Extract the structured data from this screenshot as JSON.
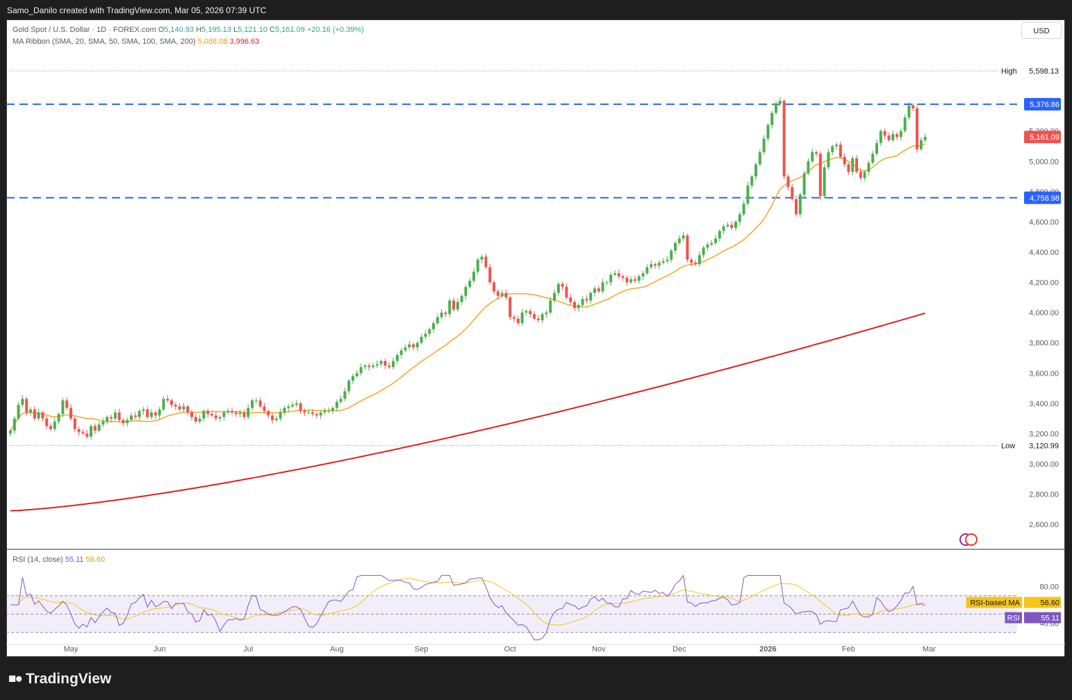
{
  "credit": "Samo_Danilo created with TradingView.com, Mar 05, 2026 07:39 UTC",
  "currency_button": "USD",
  "branding": "TradingView",
  "legend": {
    "symbol": "Gold Spot / U.S. Dollar · 1D · FOREX.com",
    "open_label": "O",
    "open": "5,140.93",
    "high_label": "H",
    "high": "5,195.13",
    "low_label": "L",
    "low": "5,121.10",
    "close_label": "C",
    "close": "5,161.09",
    "change": "+20.16 (+0.39%)",
    "ma_label": "MA Ribbon (SMA, 20, SMA, 50, SMA, 100, SMA, 200)",
    "ma20": "5,088.08",
    "ma200": "3,996.63"
  },
  "rsi_legend": {
    "label": "RSI (14, close)",
    "rsi": "55.11",
    "ma": "56.60"
  },
  "colors": {
    "up": "#4caf50",
    "down": "#ef5350",
    "ma20": "#f5a623",
    "ma200": "#e0201e",
    "level": "#2962ff",
    "rsi": "#7e57c2",
    "rsi_ma": "#f5c518"
  },
  "chart_data": {
    "type": "candlestick",
    "price_axis": {
      "ticks": [
        2600,
        2800,
        3000,
        3200,
        3400,
        3600,
        3800,
        4000,
        4200,
        4400,
        4600,
        4800,
        5000,
        5200
      ],
      "tick_labels": [
        "2,600.00",
        "2,800.00",
        "3,000.00",
        "3,200.00",
        "3,400.00",
        "3,600.00",
        "3,800.00",
        "4,000.00",
        "4,200.00",
        "4,400.00",
        "4,600.00",
        "4,800.00",
        "5,000.00",
        "5,200.00"
      ],
      "range": [
        2440,
        5800
      ]
    },
    "time_axis": {
      "labels": [
        "May",
        "Jun",
        "Jul",
        "Aug",
        "Sep",
        "Oct",
        "Nov",
        "Dec",
        "2026",
        "Feb",
        "Mar"
      ],
      "label_bar_index": [
        15,
        37,
        59,
        81,
        102,
        124,
        146,
        166,
        188,
        208,
        228
      ]
    },
    "high_marker": {
      "label": "High",
      "value": 5598.13,
      "text": "5,598.13"
    },
    "low_marker": {
      "label": "Low",
      "value": 3120.99,
      "text": "3,120.99"
    },
    "levels": [
      {
        "value": 5376.86,
        "text": "5,376.86"
      },
      {
        "value": 4758.98,
        "text": "4,758.98"
      }
    ],
    "last_price": {
      "value": 5161.09,
      "text": "5,161.09"
    },
    "closes": [
      3220,
      3300,
      3390,
      3430,
      3340,
      3360,
      3300,
      3340,
      3300,
      3250,
      3230,
      3280,
      3330,
      3420,
      3370,
      3300,
      3230,
      3210,
      3200,
      3180,
      3250,
      3220,
      3260,
      3280,
      3310,
      3300,
      3340,
      3290,
      3270,
      3290,
      3320,
      3310,
      3350,
      3360,
      3310,
      3340,
      3320,
      3360,
      3430,
      3420,
      3390,
      3380,
      3360,
      3380,
      3340,
      3310,
      3280,
      3300,
      3350,
      3330,
      3320,
      3300,
      3310,
      3340,
      3350,
      3340,
      3330,
      3340,
      3310,
      3370,
      3420,
      3420,
      3380,
      3350,
      3320,
      3290,
      3300,
      3340,
      3370,
      3380,
      3390,
      3400,
      3350,
      3340,
      3340,
      3330,
      3320,
      3340,
      3350,
      3350,
      3370,
      3410,
      3430,
      3480,
      3550,
      3580,
      3600,
      3640,
      3650,
      3640,
      3650,
      3660,
      3680,
      3650,
      3640,
      3680,
      3720,
      3750,
      3770,
      3790,
      3770,
      3800,
      3840,
      3860,
      3890,
      3930,
      3970,
      4000,
      3990,
      4080,
      4020,
      4070,
      4110,
      4170,
      4210,
      4270,
      4350,
      4370,
      4300,
      4200,
      4140,
      4110,
      4130,
      4100,
      3970,
      3960,
      3930,
      4000,
      4010,
      3990,
      3960,
      3950,
      3990,
      4000,
      4080,
      4130,
      4190,
      4170,
      4100,
      4070,
      4030,
      4050,
      4090,
      4080,
      4130,
      4160,
      4140,
      4200,
      4200,
      4250,
      4260,
      4240,
      4230,
      4200,
      4220,
      4210,
      4240,
      4260,
      4300,
      4320,
      4310,
      4330,
      4340,
      4350,
      4410,
      4460,
      4490,
      4510,
      4350,
      4330,
      4320,
      4380,
      4430,
      4450,
      4460,
      4490,
      4540,
      4570,
      4580,
      4560,
      4600,
      4650,
      4720,
      4840,
      4900,
      4980,
      5060,
      5150,
      5240,
      5320,
      5380,
      5400,
      4900,
      4830,
      4750,
      4650,
      4780,
      4920,
      5000,
      5060,
      5050,
      4770,
      4960,
      5060,
      5100,
      5110,
      5030,
      4980,
      4930,
      5020,
      4930,
      4890,
      4930,
      4990,
      5050,
      5120,
      5200,
      5170,
      5140,
      5180,
      5160,
      5200,
      5290,
      5370,
      5350,
      5080,
      5140,
      5161
    ]
  }
}
